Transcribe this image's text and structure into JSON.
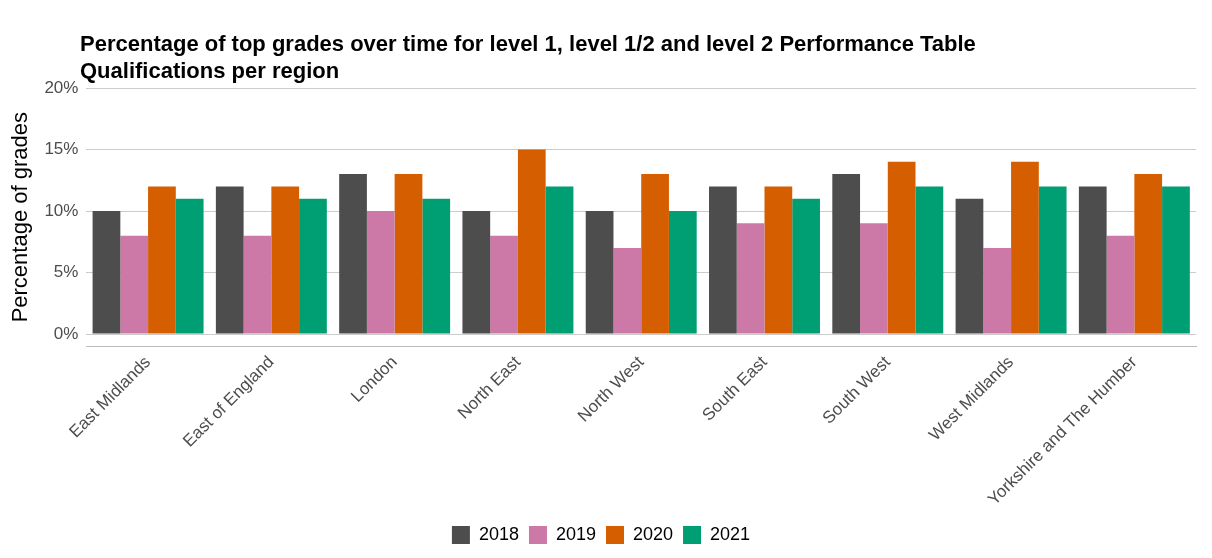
{
  "chart_data": {
    "type": "bar",
    "title": "Percentage of top grades over time for level 1, level 1/2 and level 2 Performance Table Qualifications per region",
    "ylabel": "Percentage of grades",
    "categories": [
      "East Midlands",
      "East of England",
      "London",
      "North East",
      "North West",
      "South East",
      "South West",
      "West Midlands",
      "Yorkshire and The Humber"
    ],
    "series": [
      {
        "name": "2018",
        "color": "#4d4d4d",
        "values": [
          10,
          12,
          13,
          10,
          10,
          12,
          13,
          11,
          12
        ]
      },
      {
        "name": "2019",
        "color": "#cc79a7",
        "values": [
          8,
          8,
          10,
          8,
          7,
          9,
          9,
          7,
          8
        ]
      },
      {
        "name": "2020",
        "color": "#d55e00",
        "values": [
          12,
          12,
          13,
          15,
          13,
          12,
          14,
          14,
          13
        ]
      },
      {
        "name": "2021",
        "color": "#009e73",
        "values": [
          11,
          11,
          11,
          12,
          10,
          11,
          12,
          12,
          12
        ]
      }
    ],
    "ylim": [
      -1,
      20
    ],
    "yticks": [
      {
        "value": 0,
        "label": "0%"
      },
      {
        "value": 5,
        "label": "5%"
      },
      {
        "value": 10,
        "label": "10%"
      },
      {
        "value": 15,
        "label": "15%"
      },
      {
        "value": 20,
        "label": "20%"
      }
    ],
    "grid": "y",
    "legend": "bottom"
  }
}
